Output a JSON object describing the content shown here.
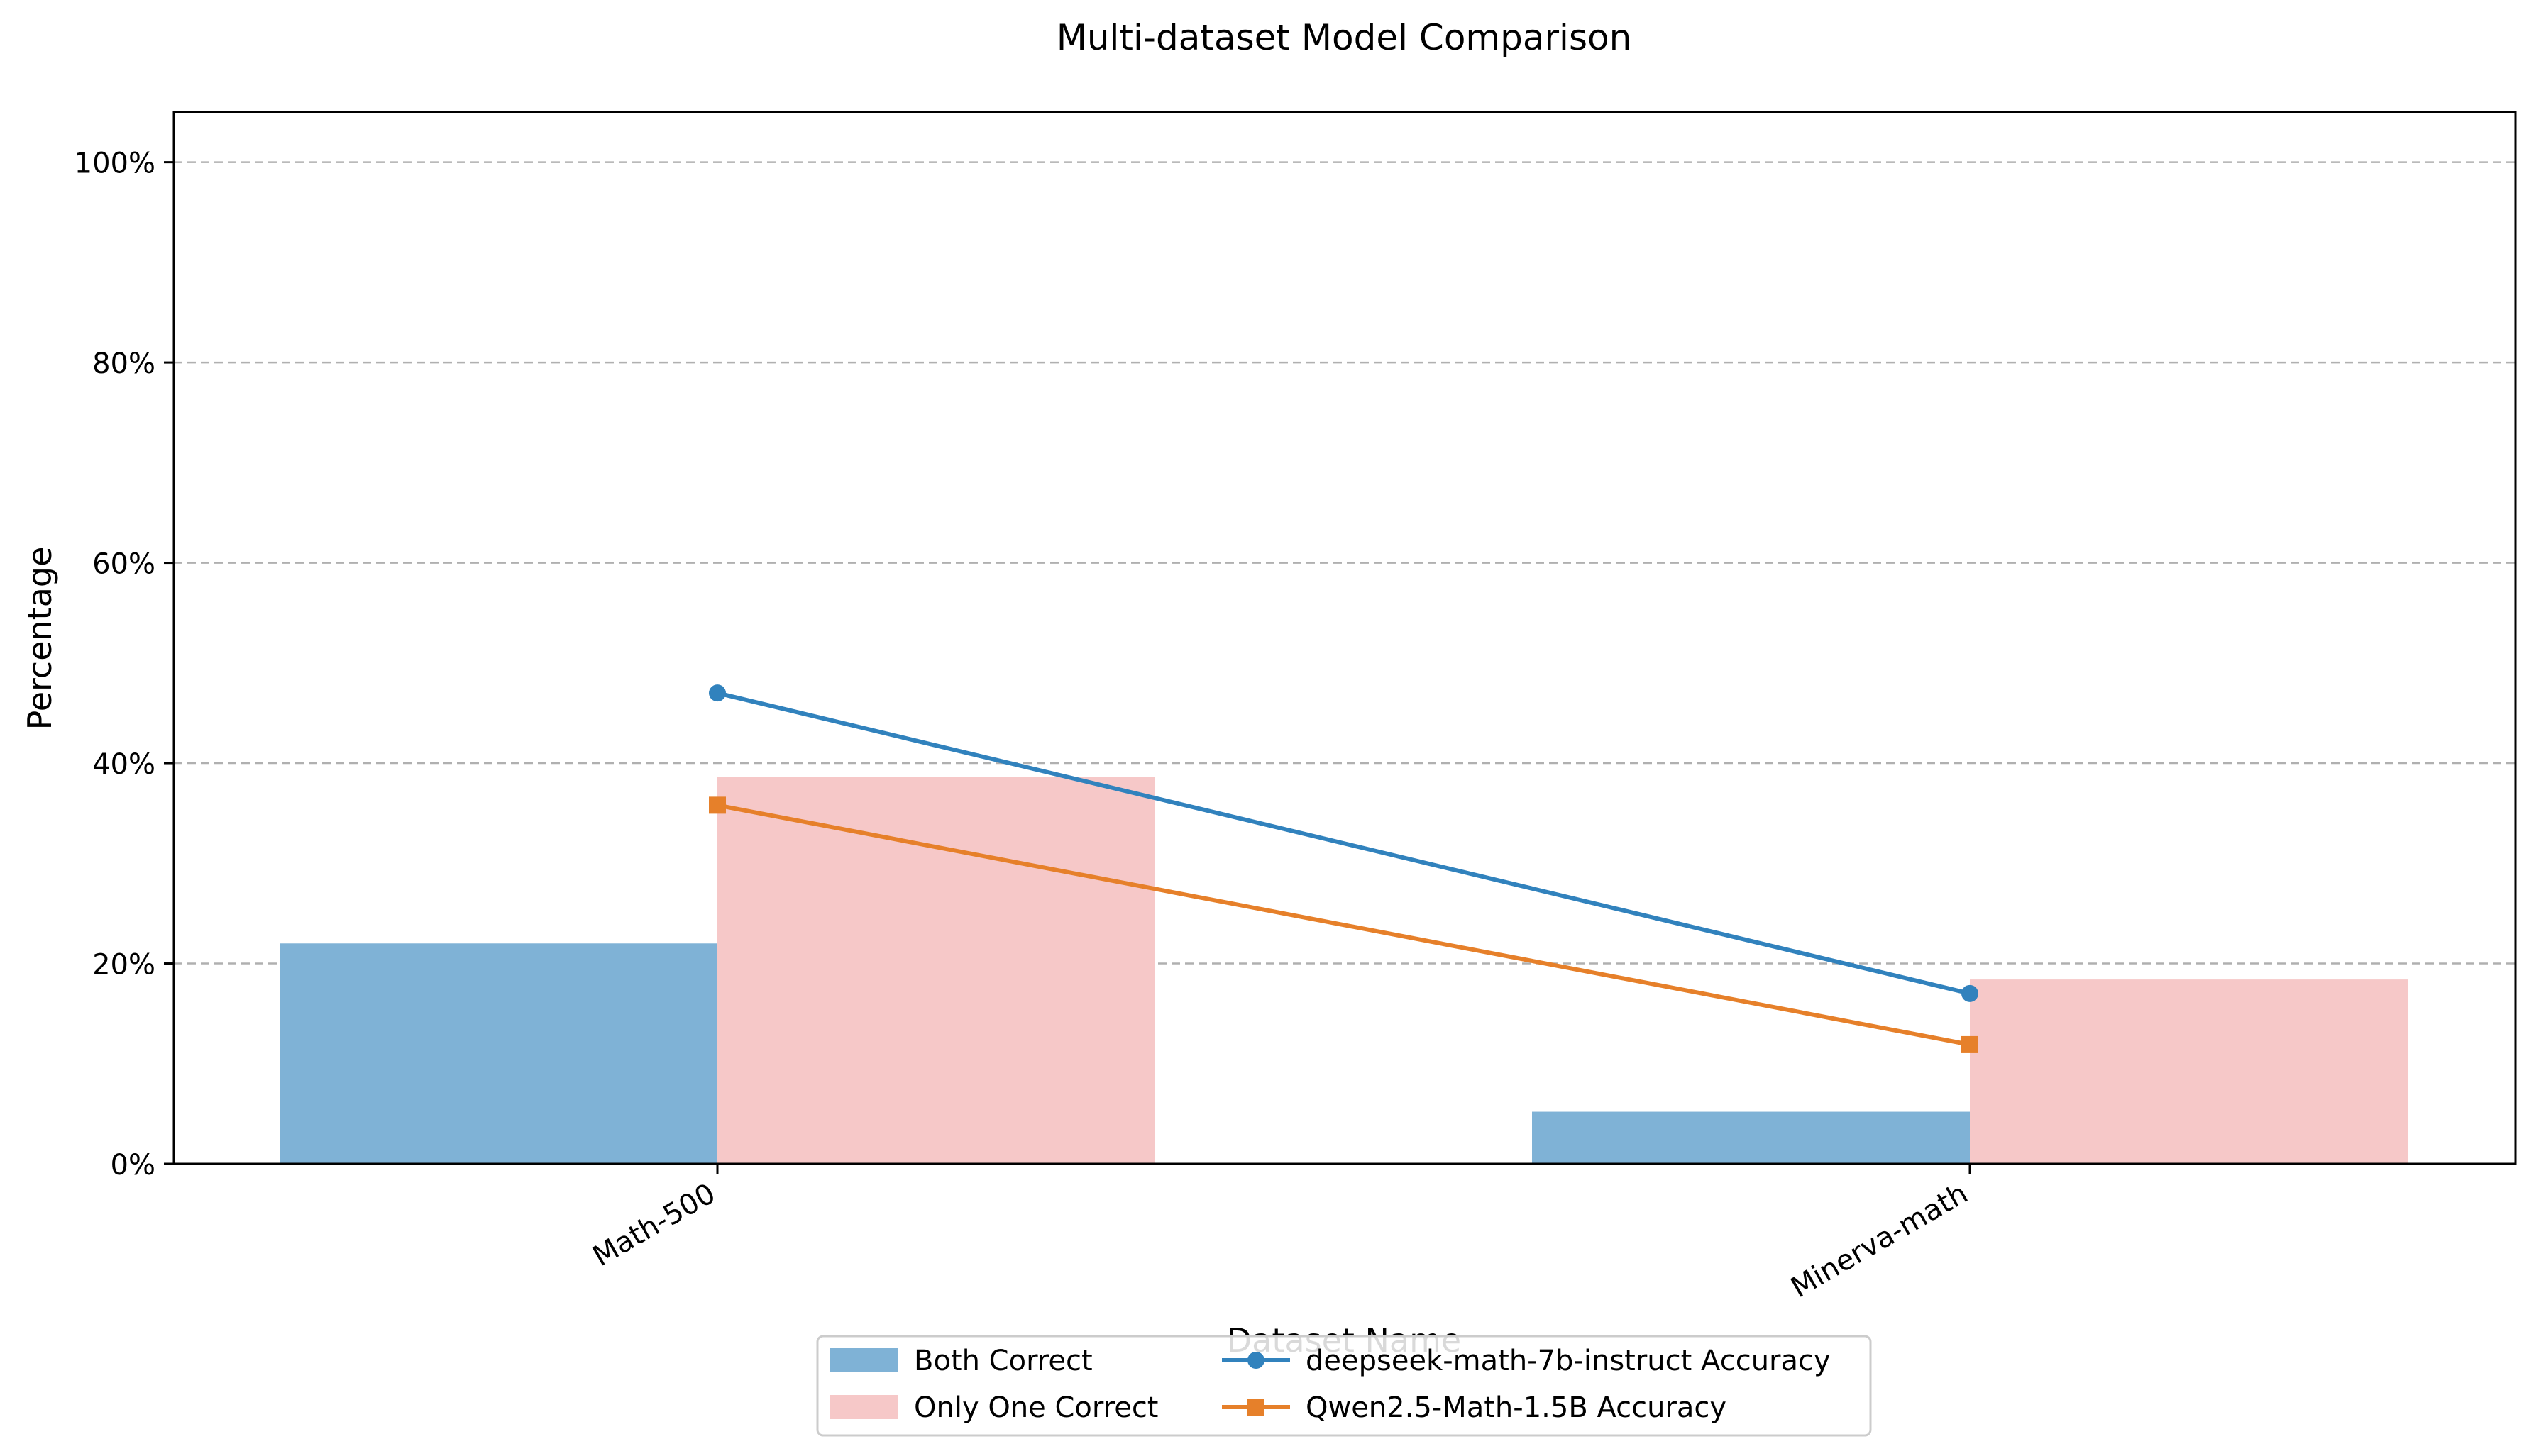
{
  "chart_data": {
    "type": "bar",
    "title": "Multi-dataset Model Comparison",
    "xlabel": "Dataset Name",
    "ylabel": "Percentage",
    "categories": [
      "Math-500",
      "Minerva-math"
    ],
    "ylim": [
      0,
      105
    ],
    "yticks": [
      "0%",
      "20%",
      "40%",
      "60%",
      "80%",
      "100%"
    ],
    "ytick_values": [
      0,
      20,
      40,
      60,
      80,
      100
    ],
    "grid": "horizontal dashed",
    "legend_position": "bottom-center",
    "bar_series": [
      {
        "name": "Both Correct",
        "values": [
          22.0,
          5.2
        ],
        "color": "#7fb2d6"
      },
      {
        "name": "Only One Correct",
        "values": [
          38.6,
          18.4
        ],
        "color": "#f6c8c8"
      }
    ],
    "line_series": [
      {
        "name": "deepseek-math-7b-instruct Accuracy",
        "values": [
          47.0,
          17.0
        ],
        "color": "#3182bd",
        "marker": "circle"
      },
      {
        "name": "Qwen2.5-Math-1.5B Accuracy",
        "values": [
          35.8,
          11.9
        ],
        "color": "#e6802a",
        "marker": "square"
      }
    ]
  }
}
